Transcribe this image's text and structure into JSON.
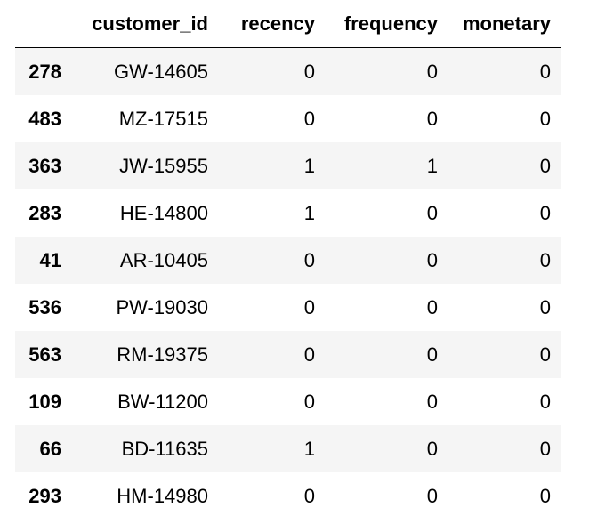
{
  "table": {
    "index_header": "",
    "columns": [
      "customer_id",
      "recency",
      "frequency",
      "monetary"
    ],
    "rows": [
      {
        "index": "278",
        "customer_id": "GW-14605",
        "recency": "0",
        "frequency": "0",
        "monetary": "0"
      },
      {
        "index": "483",
        "customer_id": "MZ-17515",
        "recency": "0",
        "frequency": "0",
        "monetary": "0"
      },
      {
        "index": "363",
        "customer_id": "JW-15955",
        "recency": "1",
        "frequency": "1",
        "monetary": "0"
      },
      {
        "index": "283",
        "customer_id": "HE-14800",
        "recency": "1",
        "frequency": "0",
        "monetary": "0"
      },
      {
        "index": "41",
        "customer_id": "AR-10405",
        "recency": "0",
        "frequency": "0",
        "monetary": "0"
      },
      {
        "index": "536",
        "customer_id": "PW-19030",
        "recency": "0",
        "frequency": "0",
        "monetary": "0"
      },
      {
        "index": "563",
        "customer_id": "RM-19375",
        "recency": "0",
        "frequency": "0",
        "monetary": "0"
      },
      {
        "index": "109",
        "customer_id": "BW-11200",
        "recency": "0",
        "frequency": "0",
        "monetary": "0"
      },
      {
        "index": "66",
        "customer_id": "BD-11635",
        "recency": "1",
        "frequency": "0",
        "monetary": "0"
      },
      {
        "index": "293",
        "customer_id": "HM-14980",
        "recency": "0",
        "frequency": "0",
        "monetary": "0"
      }
    ]
  }
}
